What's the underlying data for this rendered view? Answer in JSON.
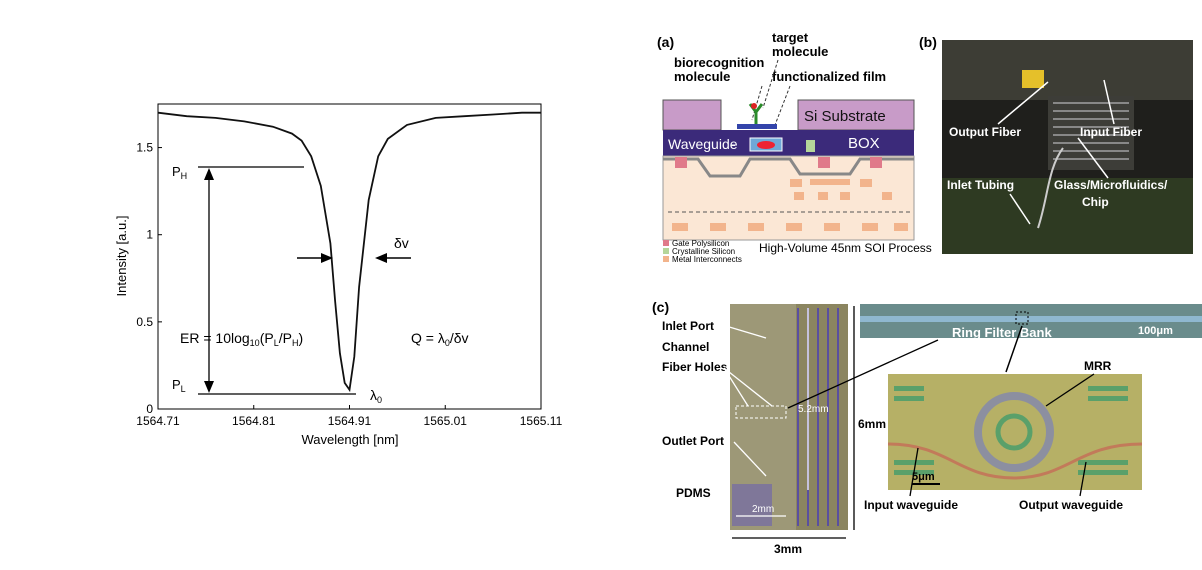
{
  "chart_data": {
    "type": "line",
    "xlabel": "Wavelength [nm]",
    "ylabel": "Intensity [a.u.]",
    "xlim": [
      1564.71,
      1565.11
    ],
    "ylim": [
      0,
      1.75
    ],
    "xticks": [
      "1564.71",
      "1564.81",
      "1564.91",
      "1565.01",
      "1565.11"
    ],
    "yticks": [
      "0",
      "0.5",
      "1",
      "1.5"
    ],
    "series": [
      {
        "x": [
          1564.71,
          1564.74,
          1564.77,
          1564.8,
          1564.83,
          1564.85,
          1564.86,
          1564.87,
          1564.88,
          1564.89,
          1564.895,
          1564.9,
          1564.905,
          1564.91,
          1564.915,
          1564.92,
          1564.93,
          1564.94,
          1564.95,
          1564.97,
          1565.0,
          1565.03,
          1565.06,
          1565.09,
          1565.11
        ],
        "y": [
          1.7,
          1.68,
          1.67,
          1.65,
          1.62,
          1.58,
          1.54,
          1.45,
          1.28,
          0.95,
          0.62,
          0.32,
          0.15,
          0.11,
          0.3,
          0.7,
          1.2,
          1.45,
          1.55,
          1.63,
          1.67,
          1.68,
          1.69,
          1.7,
          1.7
        ]
      }
    ],
    "annotations": {
      "ph": "P",
      "ph_sub": "H",
      "pl": "P",
      "pl_sub": "L",
      "dv": "δv",
      "lambda0": "λ",
      "lambda0_sub": "0",
      "er_prefix": "ER = 10log",
      "er_sub": "10",
      "er_mid": "(P",
      "er_sub_l": "L",
      "er_slash": "/P",
      "er_sub_h": "H",
      "er_close": ")",
      "q_formula": "Q = λ",
      "q_sub": "0",
      "q_tail": "/δv"
    }
  },
  "panel_a": {
    "label": "(a)",
    "target_molecule_1": "target",
    "target_molecule_2": "molecule",
    "biorecognition_1": "biorecognition",
    "biorecognition_2": "molecule",
    "functionalized_film": "functionalized film",
    "si_substrate": "Si Substrate",
    "waveguide": "Waveguide",
    "box": "BOX",
    "legend": [
      "Gate Polysilicon",
      "Crystalline Silicon",
      "Metal Interconnects"
    ],
    "process": "High-Volume 45nm SOI Process"
  },
  "panel_b": {
    "label": "(b)",
    "output_fiber": "Output Fiber",
    "input_fiber": "Input Fiber",
    "inlet_tubing": "Inlet Tubing",
    "glass_1": "Glass/Microfluidics/",
    "glass_2": "Chip"
  },
  "panel_c": {
    "label": "(c)",
    "inlet_port": "Inlet Port",
    "channel": "Channel",
    "fiber_holes": "Fiber Holes",
    "outlet_port": "Outlet Port",
    "pdms": "PDMS",
    "dim_52": "5.2mm",
    "dim_6": "6mm",
    "dim_2": "2mm",
    "dim_3": "3mm",
    "ring_filter_bank": "Ring Filter Bank",
    "scale_100": "100μm",
    "mrr": "MRR",
    "scale_5": "5μm",
    "input_waveguide": "Input waveguide",
    "output_waveguide": "Output waveguide"
  }
}
